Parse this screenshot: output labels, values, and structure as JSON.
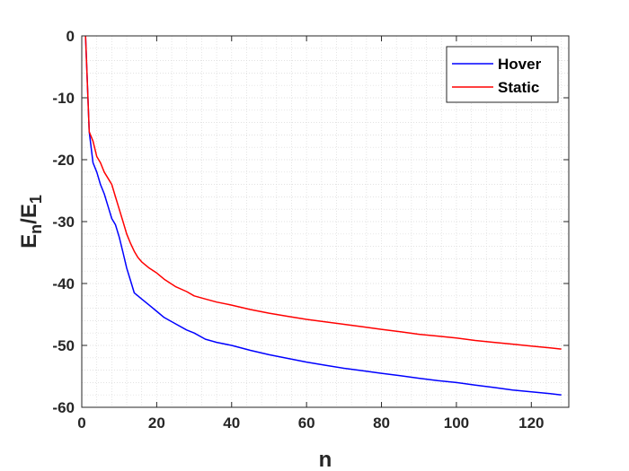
{
  "chart_data": {
    "type": "line",
    "xlabel": "n",
    "ylabel": {
      "main": "E",
      "sub1": "n",
      "mid": "/E",
      "sub2": "1"
    },
    "xlim": [
      0,
      130
    ],
    "ylim": [
      -60,
      0
    ],
    "xticks": [
      0,
      20,
      40,
      60,
      80,
      100,
      120
    ],
    "yticks": [
      0,
      -10,
      -20,
      -30,
      -40,
      -50,
      -60
    ],
    "grid": "minor-dotted",
    "legend_position": "top-right",
    "series": [
      {
        "name": "Hover",
        "color": "#0000ff",
        "x": [
          1,
          2,
          3,
          4,
          5,
          6,
          7,
          8,
          9,
          10,
          11,
          12,
          13,
          14,
          15,
          16,
          18,
          20,
          22,
          25,
          28,
          30,
          33,
          36,
          40,
          45,
          50,
          55,
          60,
          65,
          70,
          75,
          80,
          85,
          90,
          95,
          100,
          105,
          110,
          115,
          120,
          125,
          128
        ],
        "y": [
          0,
          -15.5,
          -20.5,
          -22,
          -24,
          -25.5,
          -27.5,
          -29.5,
          -30.5,
          -32.5,
          -35,
          -37.5,
          -39.5,
          -41.5,
          -42,
          -42.5,
          -43.5,
          -44.5,
          -45.5,
          -46.5,
          -47.5,
          -48,
          -49,
          -49.5,
          -50,
          -50.8,
          -51.5,
          -52.1,
          -52.7,
          -53.2,
          -53.7,
          -54.1,
          -54.5,
          -54.9,
          -55.3,
          -55.7,
          -56,
          -56.4,
          -56.8,
          -57.2,
          -57.5,
          -57.8,
          -58
        ]
      },
      {
        "name": "Static",
        "color": "#ff0000",
        "x": [
          1,
          2,
          3,
          4,
          5,
          6,
          7,
          8,
          9,
          10,
          11,
          12,
          13,
          14,
          15,
          16,
          18,
          20,
          22,
          25,
          28,
          30,
          33,
          36,
          40,
          45,
          50,
          55,
          60,
          65,
          70,
          75,
          80,
          85,
          90,
          95,
          100,
          105,
          110,
          115,
          120,
          125,
          128
        ],
        "y": [
          0,
          -15.5,
          -17,
          -19.5,
          -20.5,
          -22,
          -23,
          -24,
          -26,
          -28,
          -30,
          -32,
          -33.5,
          -34.8,
          -35.8,
          -36.5,
          -37.5,
          -38.3,
          -39.3,
          -40.5,
          -41.3,
          -42,
          -42.5,
          -43,
          -43.5,
          -44.2,
          -44.8,
          -45.3,
          -45.8,
          -46.2,
          -46.6,
          -47,
          -47.4,
          -47.8,
          -48.2,
          -48.5,
          -48.8,
          -49.2,
          -49.5,
          -49.8,
          -50.1,
          -50.4,
          -50.6
        ]
      }
    ]
  }
}
